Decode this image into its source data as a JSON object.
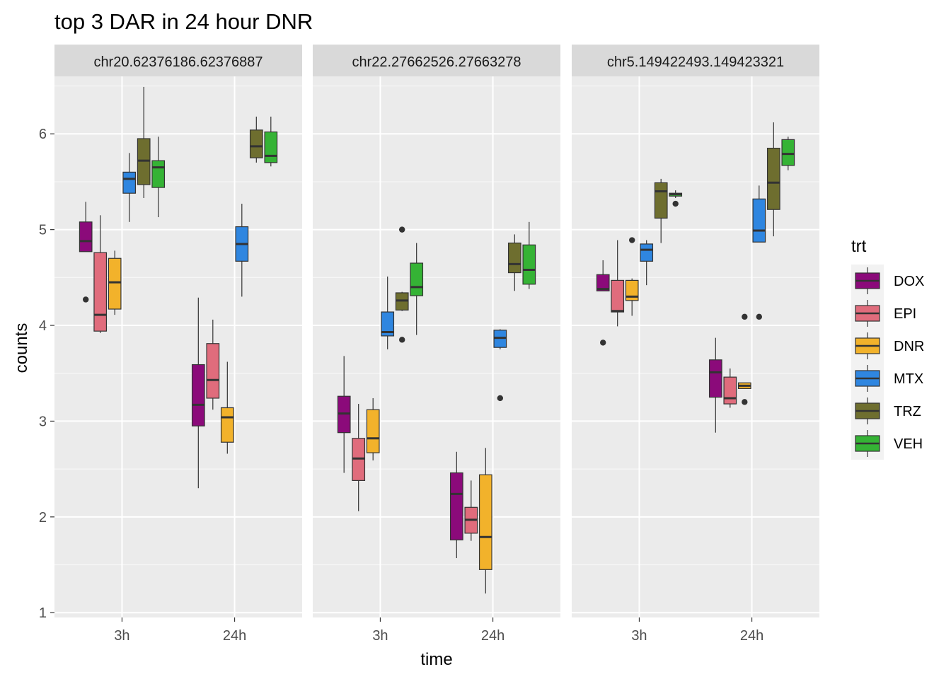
{
  "chart_data": {
    "type": "boxplot",
    "title": "top 3 DAR in 24 hour DNR",
    "xlabel": "time",
    "ylabel": "counts",
    "ylim": [
      0.95,
      6.6
    ],
    "yticks": [
      1,
      2,
      3,
      4,
      5,
      6
    ],
    "categories": [
      "3h",
      "24h"
    ],
    "legend": {
      "title": "trt",
      "position": "right",
      "entries": [
        {
          "name": "DOX",
          "color": "#8b0a7a"
        },
        {
          "name": "EPI",
          "color": "#e06c7c"
        },
        {
          "name": "DNR",
          "color": "#f2b22b"
        },
        {
          "name": "MTX",
          "color": "#2f86e0"
        },
        {
          "name": "TRZ",
          "color": "#6e6e2f"
        },
        {
          "name": "VEH",
          "color": "#35b335"
        }
      ]
    },
    "panels": [
      {
        "strip": "chr20.62376186.62376887",
        "groups": {
          "3h": {
            "DOX": {
              "min": 4.77,
              "q1": 4.77,
              "median": 4.88,
              "q3": 5.08,
              "max": 5.29,
              "outliers": [
                4.27
              ]
            },
            "EPI": {
              "min": 3.92,
              "q1": 3.94,
              "median": 4.11,
              "q3": 4.76,
              "max": 5.15,
              "outliers": []
            },
            "DNR": {
              "min": 4.11,
              "q1": 4.17,
              "median": 4.45,
              "q3": 4.7,
              "max": 4.78,
              "outliers": []
            },
            "MTX": {
              "min": 5.08,
              "q1": 5.38,
              "median": 5.53,
              "q3": 5.6,
              "max": 5.8,
              "outliers": []
            },
            "TRZ": {
              "min": 5.33,
              "q1": 5.47,
              "median": 5.72,
              "q3": 5.95,
              "max": 6.49,
              "outliers": []
            },
            "VEH": {
              "min": 5.13,
              "q1": 5.44,
              "median": 5.65,
              "q3": 5.72,
              "max": 5.97,
              "outliers": []
            }
          },
          "24h": {
            "DOX": {
              "min": 2.3,
              "q1": 2.95,
              "median": 3.17,
              "q3": 3.59,
              "max": 4.29,
              "outliers": []
            },
            "EPI": {
              "min": 3.12,
              "q1": 3.24,
              "median": 3.43,
              "q3": 3.81,
              "max": 4.06,
              "outliers": []
            },
            "DNR": {
              "min": 2.66,
              "q1": 2.78,
              "median": 3.04,
              "q3": 3.14,
              "max": 3.62,
              "outliers": []
            },
            "MTX": {
              "min": 4.3,
              "q1": 4.67,
              "median": 4.85,
              "q3": 5.03,
              "max": 5.27,
              "outliers": []
            },
            "TRZ": {
              "min": 5.7,
              "q1": 5.75,
              "median": 5.87,
              "q3": 6.04,
              "max": 6.18,
              "outliers": []
            },
            "VEH": {
              "min": 5.66,
              "q1": 5.7,
              "median": 5.77,
              "q3": 6.02,
              "max": 6.18,
              "outliers": []
            }
          }
        }
      },
      {
        "strip": "chr22.27662526.27663278",
        "groups": {
          "3h": {
            "DOX": {
              "min": 2.46,
              "q1": 2.88,
              "median": 3.08,
              "q3": 3.26,
              "max": 3.68,
              "outliers": []
            },
            "EPI": {
              "min": 2.06,
              "q1": 2.38,
              "median": 2.61,
              "q3": 2.82,
              "max": 3.18,
              "outliers": []
            },
            "DNR": {
              "min": 2.59,
              "q1": 2.67,
              "median": 2.82,
              "q3": 3.12,
              "max": 3.24,
              "outliers": []
            },
            "MTX": {
              "min": 3.75,
              "q1": 3.89,
              "median": 3.93,
              "q3": 4.14,
              "max": 4.51,
              "outliers": []
            },
            "TRZ": {
              "min": 4.15,
              "q1": 4.16,
              "median": 4.26,
              "q3": 4.34,
              "max": 4.35,
              "outliers": [
                3.85,
                5.0
              ]
            },
            "VEH": {
              "min": 3.9,
              "q1": 4.31,
              "median": 4.4,
              "q3": 4.65,
              "max": 4.86,
              "outliers": []
            }
          },
          "24h": {
            "DOX": {
              "min": 1.57,
              "q1": 1.76,
              "median": 2.24,
              "q3": 2.46,
              "max": 2.68,
              "outliers": []
            },
            "EPI": {
              "min": 1.75,
              "q1": 1.83,
              "median": 1.97,
              "q3": 2.1,
              "max": 2.38,
              "outliers": []
            },
            "DNR": {
              "min": 1.2,
              "q1": 1.45,
              "median": 1.79,
              "q3": 2.44,
              "max": 2.72,
              "outliers": []
            },
            "MTX": {
              "min": 3.75,
              "q1": 3.77,
              "median": 3.87,
              "q3": 3.95,
              "max": 3.96,
              "outliers": [
                3.24
              ]
            },
            "TRZ": {
              "min": 4.36,
              "q1": 4.55,
              "median": 4.64,
              "q3": 4.86,
              "max": 4.95,
              "outliers": []
            },
            "VEH": {
              "min": 4.38,
              "q1": 4.43,
              "median": 4.58,
              "q3": 4.84,
              "max": 5.08,
              "outliers": []
            }
          }
        }
      },
      {
        "strip": "chr5.149422493.149423321",
        "groups": {
          "3h": {
            "DOX": {
              "min": 4.36,
              "q1": 4.36,
              "median": 4.38,
              "q3": 4.53,
              "max": 4.68,
              "outliers": [
                3.82
              ]
            },
            "EPI": {
              "min": 3.99,
              "q1": 4.14,
              "median": 4.15,
              "q3": 4.47,
              "max": 4.89,
              "outliers": []
            },
            "DNR": {
              "min": 4.1,
              "q1": 4.26,
              "median": 4.3,
              "q3": 4.47,
              "max": 4.49,
              "outliers": [
                4.89
              ]
            },
            "MTX": {
              "min": 4.42,
              "q1": 4.67,
              "median": 4.79,
              "q3": 4.85,
              "max": 4.89,
              "outliers": []
            },
            "TRZ": {
              "min": 4.86,
              "q1": 5.12,
              "median": 5.4,
              "q3": 5.49,
              "max": 5.53,
              "outliers": []
            },
            "VEH": {
              "min": 5.33,
              "q1": 5.35,
              "median": 5.37,
              "q3": 5.38,
              "max": 5.41,
              "outliers": [
                5.27
              ]
            }
          },
          "24h": {
            "DOX": {
              "min": 2.88,
              "q1": 3.25,
              "median": 3.51,
              "q3": 3.64,
              "max": 3.87,
              "outliers": []
            },
            "EPI": {
              "min": 3.14,
              "q1": 3.18,
              "median": 3.24,
              "q3": 3.46,
              "max": 3.55,
              "outliers": []
            },
            "DNR": {
              "min": 3.34,
              "q1": 3.34,
              "median": 3.37,
              "q3": 3.4,
              "max": 3.4,
              "outliers": [
                3.2,
                4.09
              ]
            },
            "MTX": {
              "min": 4.87,
              "q1": 4.87,
              "median": 4.99,
              "q3": 5.32,
              "max": 5.46,
              "outliers": [
                4.09
              ]
            },
            "TRZ": {
              "min": 4.93,
              "q1": 5.21,
              "median": 5.49,
              "q3": 5.85,
              "max": 6.12,
              "outliers": []
            },
            "VEH": {
              "min": 5.62,
              "q1": 5.67,
              "median": 5.79,
              "q3": 5.94,
              "max": 5.97,
              "outliers": []
            }
          }
        }
      }
    ]
  }
}
